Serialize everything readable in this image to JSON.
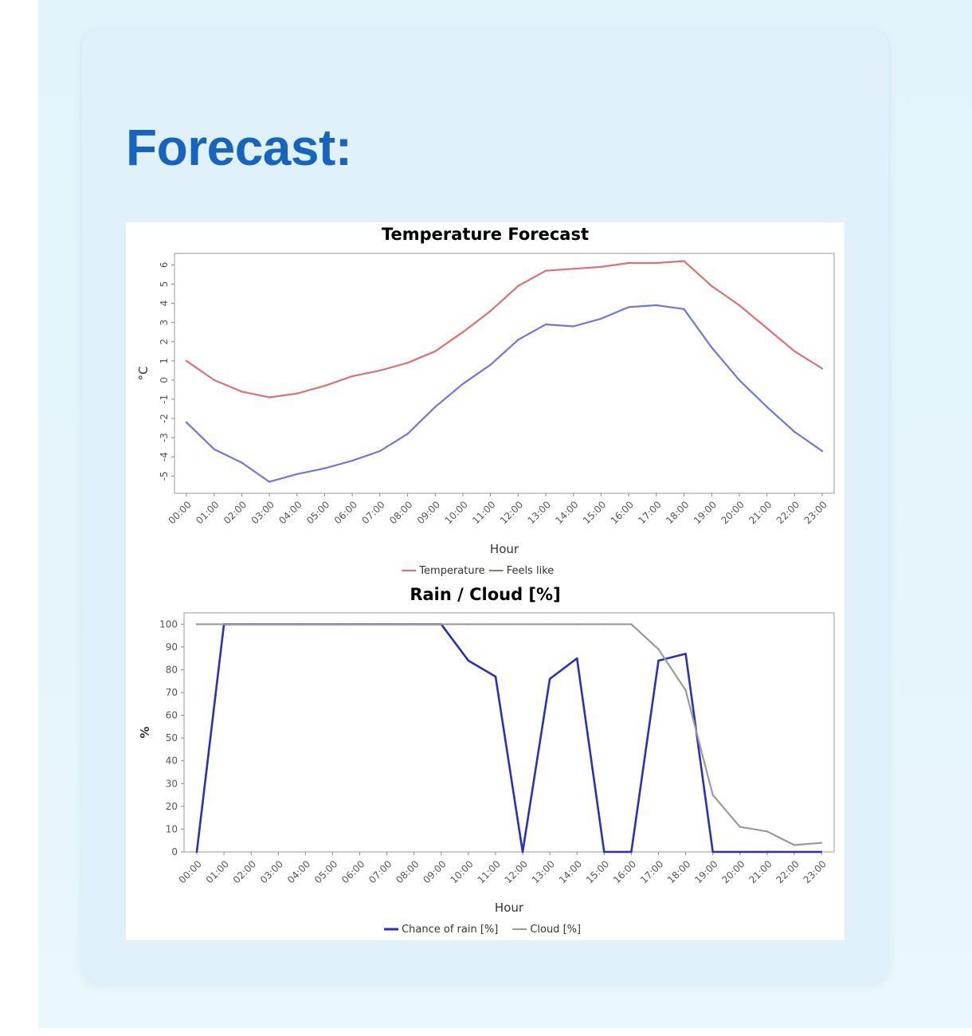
{
  "page": {
    "heading": "Forecast:"
  },
  "colors": {
    "heading": "#1565c0",
    "temperature": "#e07070",
    "feels_like": "#7474e0",
    "rain": "#2a2ec4",
    "cloud": "#9a9a9a"
  },
  "chart_data": [
    {
      "type": "line",
      "title": "Temperature Forecast",
      "xlabel": "Hour",
      "ylabel": "°C",
      "x": [
        "00:00",
        "01:00",
        "02:00",
        "03:00",
        "04:00",
        "05:00",
        "06:00",
        "07:00",
        "08:00",
        "09:00",
        "10:00",
        "11:00",
        "12:00",
        "13:00",
        "14:00",
        "15:00",
        "16:00",
        "17:00",
        "18:00",
        "19:00",
        "20:00",
        "21:00",
        "22:00",
        "23:00"
      ],
      "yticks": [
        -5,
        -4,
        -3,
        -2,
        -1,
        0,
        1,
        2,
        3,
        4,
        5,
        6
      ],
      "ylim": [
        -5.9,
        6.6
      ],
      "legend_position": "bottom",
      "grid": false,
      "series": [
        {
          "name": "Temperature",
          "color": "#e07070",
          "values": [
            1.0,
            0.0,
            -0.6,
            -0.9,
            -0.7,
            -0.3,
            0.2,
            0.5,
            0.9,
            1.5,
            2.5,
            3.6,
            4.9,
            5.7,
            5.8,
            5.9,
            6.1,
            6.1,
            6.2,
            4.9,
            3.9,
            2.7,
            1.5,
            0.6
          ]
        },
        {
          "name": "Feels like",
          "color": "#7474e0",
          "values": [
            -2.2,
            -3.6,
            -4.3,
            -5.3,
            -4.9,
            -4.6,
            -4.2,
            -3.7,
            -2.8,
            -1.4,
            -0.2,
            0.8,
            2.1,
            2.9,
            2.8,
            3.2,
            3.8,
            3.9,
            3.7,
            1.7,
            0.0,
            -1.4,
            -2.7,
            -3.7
          ]
        }
      ]
    },
    {
      "type": "line",
      "title": "Rain / Cloud [%]",
      "xlabel": "Hour",
      "ylabel": "%",
      "x": [
        "00:00",
        "01:00",
        "02:00",
        "03:00",
        "04:00",
        "05:00",
        "06:00",
        "07:00",
        "08:00",
        "09:00",
        "10:00",
        "11:00",
        "12:00",
        "13:00",
        "14:00",
        "15:00",
        "16:00",
        "17:00",
        "18:00",
        "19:00",
        "20:00",
        "21:00",
        "22:00",
        "23:00"
      ],
      "yticks": [
        0,
        10,
        20,
        30,
        40,
        50,
        60,
        70,
        80,
        90,
        100
      ],
      "ylim": [
        0,
        105
      ],
      "legend_position": "bottom",
      "grid": false,
      "series": [
        {
          "name": "Chance of rain [%]",
          "color": "#2a2ec4",
          "values": [
            0,
            100,
            100,
            100,
            100,
            100,
            100,
            100,
            100,
            100,
            84,
            77,
            0,
            76,
            85,
            0,
            0,
            84,
            87,
            0,
            0,
            0,
            0,
            0
          ]
        },
        {
          "name": "Cloud [%]",
          "color": "#9a9a9a",
          "values": [
            100,
            100,
            100,
            100,
            100,
            100,
            100,
            100,
            100,
            100,
            100,
            100,
            100,
            100,
            100,
            100,
            100,
            89,
            71,
            25,
            11,
            9,
            3,
            4
          ]
        }
      ]
    }
  ]
}
